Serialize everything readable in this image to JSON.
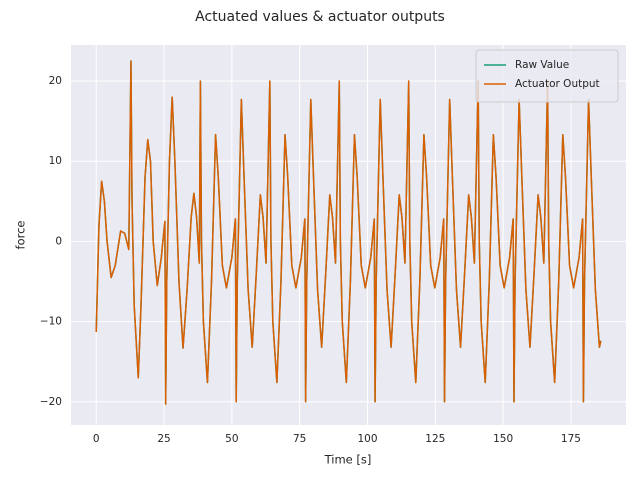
{
  "chart_data": {
    "type": "line",
    "title": "Actuated values & actuator outputs",
    "x_label": "Time [s]",
    "y_label": "force",
    "xlim": [
      -9.3,
      195.3
    ],
    "ylim": [
      -22.9,
      24.5
    ],
    "xticks": [
      0,
      25,
      50,
      75,
      100,
      125,
      150,
      175
    ],
    "yticks": [
      {
        "value": -20,
        "label": "−20"
      },
      {
        "value": -10,
        "label": "−10"
      },
      0,
      10,
      20
    ],
    "grid": true,
    "legend": "upper right",
    "x": [
      0,
      1,
      2,
      3,
      4,
      5.5,
      7,
      9,
      10.5,
      12,
      12.8,
      13.2,
      14,
      15.5,
      16.5,
      18,
      19,
      20,
      21,
      22.5,
      24,
      25.3,
      25.6,
      26,
      27,
      28,
      29,
      30.5,
      32,
      33.5,
      35,
      36,
      37,
      38,
      38.4,
      38.8,
      39.5,
      41,
      42.5,
      44,
      45,
      46.5,
      48,
      50,
      51.3,
      51.6,
      52,
      53.5,
      54.5,
      56,
      57.5,
      59,
      60.5,
      61.5,
      62.6,
      64,
      64.4,
      65.1,
      66.6,
      68.1,
      69.6,
      70.6,
      72.1,
      73.6,
      75.6,
      76.9,
      77.2,
      77.6,
      79.1,
      80.1,
      81.6,
      83.1,
      84.6,
      86.1,
      87.1,
      88.2,
      89.6,
      90,
      90.7,
      92.2,
      93.7,
      95.2,
      96.2,
      97.7,
      99.2,
      101.2,
      102.5,
      102.8,
      103.2,
      104.7,
      105.7,
      107.2,
      108.7,
      110.2,
      111.7,
      112.7,
      113.8,
      115.2,
      115.6,
      116.3,
      117.8,
      119.3,
      120.8,
      121.8,
      123.3,
      124.8,
      126.8,
      128.1,
      128.4,
      128.8,
      130.3,
      131.3,
      132.8,
      134.3,
      135.8,
      137.3,
      138.3,
      139.4,
      140.8,
      141.2,
      141.9,
      143.4,
      144.9,
      146.4,
      147.4,
      148.9,
      150.4,
      152.4,
      153.7,
      154,
      154.4,
      155.9,
      156.9,
      158.4,
      159.9,
      161.4,
      162.9,
      163.9,
      165,
      166.4,
      166.8,
      167.5,
      169,
      170.5,
      172,
      173,
      174.5,
      176,
      178,
      179.3,
      179.6,
      180,
      181.5,
      182.5,
      184,
      185.5,
      186
    ],
    "series": [
      {
        "name": "Raw Value",
        "color": "#1b9e77",
        "values": [
          -11.3,
          2,
          7.5,
          5,
          0,
          -4.5,
          -3,
          1.3,
          1,
          -1,
          22.5,
          5,
          -8,
          -17,
          -8,
          8,
          12.7,
          10,
          0,
          -5.5,
          -2,
          2.5,
          -20.3,
          -5,
          10,
          18,
          10,
          -5,
          -13.3,
          -6,
          3,
          6,
          3,
          -2.7,
          20,
          0,
          -10,
          -17.6,
          -5,
          13.3,
          8,
          -3,
          -5.8,
          -2,
          2.8,
          -20,
          -5,
          17.7,
          8,
          -6,
          -13.2,
          -4,
          5.8,
          3,
          -2.7,
          20,
          0,
          -10,
          -17.6,
          -5,
          13.3,
          8,
          -3,
          -5.8,
          -2,
          2.8,
          -20,
          -5,
          17.7,
          8,
          -6,
          -13.2,
          -4,
          5.8,
          3,
          -2.7,
          20,
          0,
          -10,
          -17.6,
          -5,
          13.3,
          8,
          -3,
          -5.8,
          -2,
          2.8,
          -20,
          -5,
          17.7,
          8,
          -6,
          -13.2,
          -4,
          5.8,
          3,
          -2.7,
          20,
          0,
          -10,
          -17.6,
          -5,
          13.3,
          8,
          -3,
          -5.8,
          -2,
          2.8,
          -20,
          -5,
          17.7,
          8,
          -6,
          -13.2,
          -4,
          5.8,
          3,
          -2.7,
          20,
          0,
          -10,
          -17.6,
          -5,
          13.3,
          8,
          -3,
          -5.8,
          -2,
          2.8,
          -20,
          -5,
          17.7,
          8,
          -6,
          -13.2,
          -4,
          5.8,
          3,
          -2.7,
          20,
          0,
          -10,
          -17.6,
          -5,
          13.3,
          8,
          -3,
          -5.8,
          -2,
          2.8,
          -20,
          -5,
          17.7,
          8,
          -6,
          -13.2,
          -12.4
        ]
      },
      {
        "name": "Actuator Output",
        "color": "#d95f02",
        "values": [
          -11.3,
          2,
          7.5,
          5,
          0,
          -4.5,
          -3,
          1.3,
          1,
          -1,
          22.5,
          5,
          -8,
          -17,
          -8,
          8,
          12.7,
          10,
          0,
          -5.5,
          -2,
          2.5,
          -20.3,
          -5,
          10,
          18,
          10,
          -5,
          -13.3,
          -6,
          3,
          6,
          3,
          -2.7,
          20,
          0,
          -10,
          -17.6,
          -5,
          13.3,
          8,
          -3,
          -5.8,
          -2,
          2.8,
          -20,
          -5,
          17.7,
          8,
          -6,
          -13.2,
          -4,
          5.8,
          3,
          -2.7,
          20,
          0,
          -10,
          -17.6,
          -5,
          13.3,
          8,
          -3,
          -5.8,
          -2,
          2.8,
          -20,
          -5,
          17.7,
          8,
          -6,
          -13.2,
          -4,
          5.8,
          3,
          -2.7,
          20,
          0,
          -10,
          -17.6,
          -5,
          13.3,
          8,
          -3,
          -5.8,
          -2,
          2.8,
          -20,
          -5,
          17.7,
          8,
          -6,
          -13.2,
          -4,
          5.8,
          3,
          -2.7,
          20,
          0,
          -10,
          -17.6,
          -5,
          13.3,
          8,
          -3,
          -5.8,
          -2,
          2.8,
          -20,
          -5,
          17.7,
          8,
          -6,
          -13.2,
          -4,
          5.8,
          3,
          -2.7,
          20,
          0,
          -10,
          -17.6,
          -5,
          13.3,
          8,
          -3,
          -5.8,
          -2,
          2.8,
          -20,
          -5,
          17.7,
          8,
          -6,
          -13.2,
          -4,
          5.8,
          3,
          -2.7,
          20,
          0,
          -10,
          -17.6,
          -5,
          13.3,
          8,
          -3,
          -5.8,
          -2,
          2.8,
          -20,
          -5,
          17.7,
          8,
          -6,
          -13.2,
          -12.4
        ]
      }
    ]
  }
}
